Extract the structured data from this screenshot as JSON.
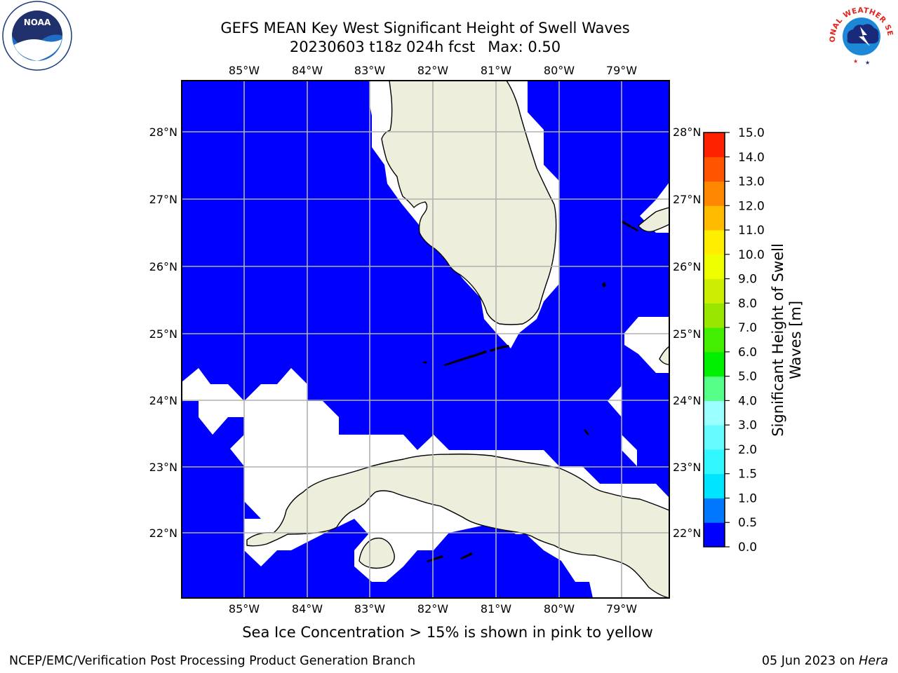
{
  "header": {
    "title_line1": "GEFS MEAN Key West Significant Height of Swell Waves",
    "title_line2": "20230603 t18z 024h fcst",
    "title_max": "Max: 0.50"
  },
  "logos": {
    "left": "NOAA",
    "right": "NATIONAL WEATHER SERVICE"
  },
  "map": {
    "lon_labels": [
      "85°W",
      "84°W",
      "83°W",
      "82°W",
      "81°W",
      "80°W",
      "79°W"
    ],
    "lat_labels": [
      "28°N",
      "27°N",
      "26°N",
      "25°N",
      "24°N",
      "23°N",
      "22°N"
    ],
    "colors": {
      "sea": "#0000ff",
      "land": "#eeeedd",
      "nodata": "#ffffff",
      "grid": "#b0b0b0"
    }
  },
  "colorbar": {
    "label": "Significant Height of Swell Waves [m]",
    "ticks": [
      "0.0",
      "0.5",
      "1.0",
      "1.5",
      "2.0",
      "3.0",
      "4.0",
      "5.0",
      "6.0",
      "7.0",
      "8.0",
      "9.0",
      "10.0",
      "11.0",
      "12.0",
      "13.0",
      "14.0",
      "15.0"
    ],
    "colors": [
      "#0000ff",
      "#0077ff",
      "#00e5ff",
      "#33f7ff",
      "#66fbff",
      "#99ffff",
      "#55ff88",
      "#00ee00",
      "#44ee00",
      "#99e600",
      "#ccee00",
      "#eeff00",
      "#ffee00",
      "#ffbb00",
      "#ff8800",
      "#ff5500",
      "#ff2200",
      "#ff0000"
    ]
  },
  "footnote": "Sea Ice Concentration > 15% is shown in pink to yellow",
  "footer": {
    "left": "NCEP/EMC/Verification Post Processing Product Generation Branch",
    "right_date": "05 Jun 2023 on",
    "right_host": "Hera"
  }
}
